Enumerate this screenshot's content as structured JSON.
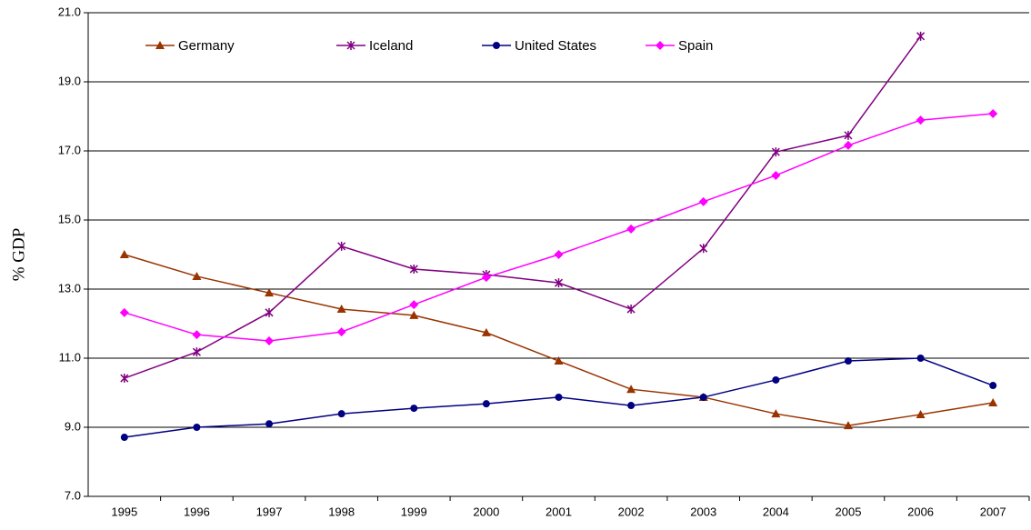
{
  "chart_data": {
    "type": "line",
    "y_label": "% GDP",
    "categories": [
      "1995",
      "1996",
      "1997",
      "1998",
      "1999",
      "2000",
      "2001",
      "2002",
      "2003",
      "2004",
      "2005",
      "2006",
      "2007"
    ],
    "series": [
      {
        "name": "Germany",
        "color": "#993300",
        "marker": "triangle",
        "values": [
          14.0,
          13.37,
          12.89,
          12.42,
          12.24,
          11.74,
          10.92,
          10.1,
          9.87,
          9.39,
          9.05,
          9.37,
          9.71
        ]
      },
      {
        "name": "Iceland",
        "color": "#800080",
        "marker": "asterisk",
        "values": [
          10.42,
          11.18,
          12.32,
          14.24,
          13.58,
          13.42,
          13.18,
          12.42,
          14.18,
          16.97,
          17.45,
          20.32,
          null
        ]
      },
      {
        "name": "United States",
        "color": "#000080",
        "marker": "circle",
        "values": [
          8.71,
          9.0,
          9.1,
          9.39,
          9.55,
          9.68,
          9.87,
          9.63,
          9.87,
          10.37,
          10.92,
          11.0,
          10.21
        ]
      },
      {
        "name": "Spain",
        "color": "#ff00ff",
        "marker": "diamond",
        "values": [
          12.32,
          11.68,
          11.5,
          11.76,
          12.55,
          13.34,
          14.0,
          14.74,
          15.53,
          16.29,
          17.16,
          17.89,
          18.08
        ]
      }
    ],
    "ylim": [
      7,
      21
    ],
    "yticks": [
      {
        "value": 7,
        "label": "7.0"
      },
      {
        "value": 9,
        "label": "9.0"
      },
      {
        "value": 11,
        "label": "11.0"
      },
      {
        "value": 13,
        "label": "13.0"
      },
      {
        "value": 15,
        "label": "15.0"
      },
      {
        "value": 17,
        "label": "17.0"
      },
      {
        "value": 19,
        "label": "19.0"
      },
      {
        "value": 21,
        "label": "21.0"
      }
    ],
    "grid": true,
    "legend": "top-left"
  }
}
